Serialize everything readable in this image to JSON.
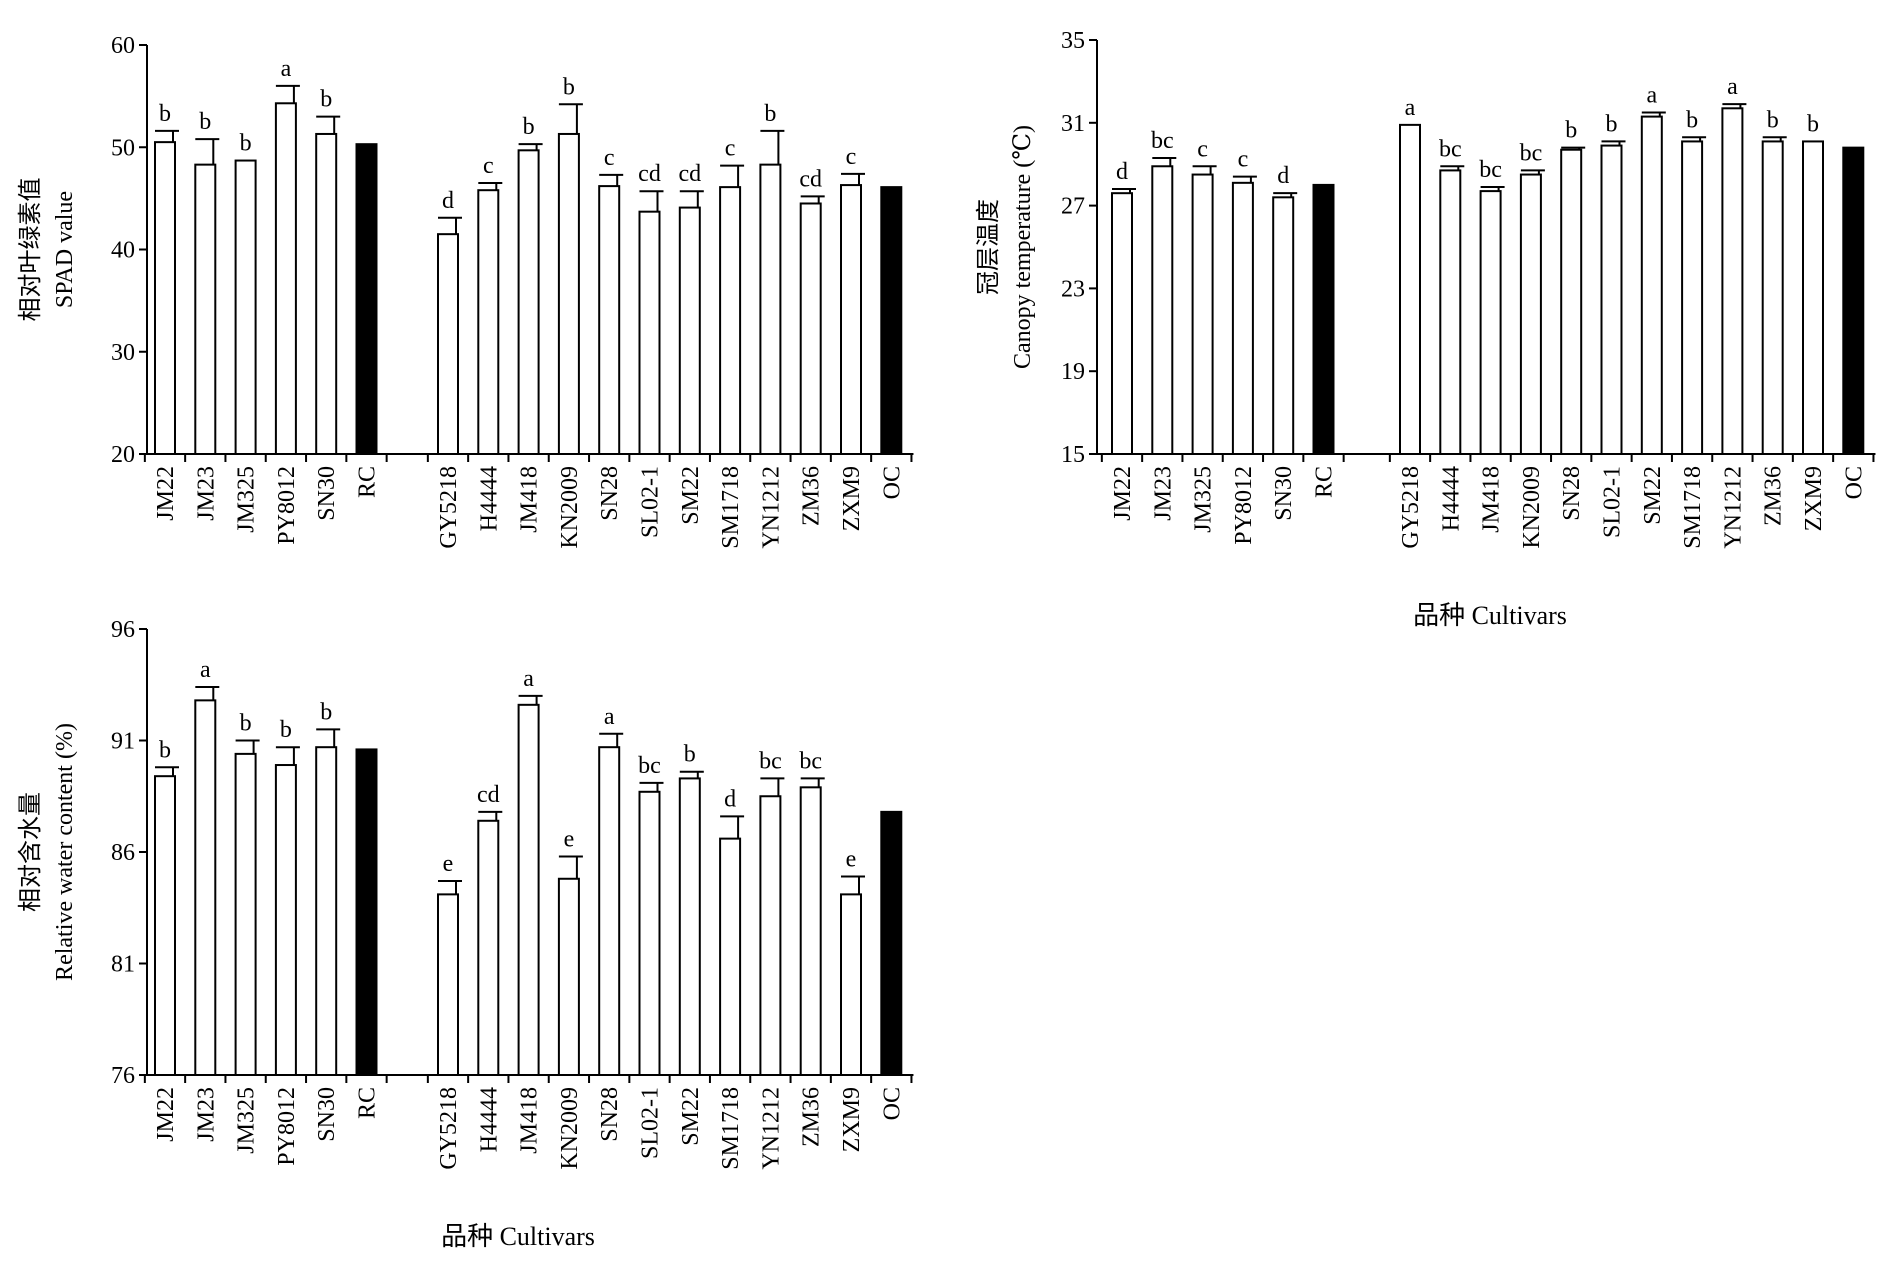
{
  "xlabel_text": "品种 Cultivars",
  "chart_data": [
    {
      "type": "bar",
      "ylabel_cn": "相对叶绿素值",
      "ylabel_en": "SPAD value",
      "ylim": [
        20,
        60
      ],
      "yticks": [
        20,
        30,
        40,
        50,
        60
      ],
      "xlabel": "",
      "groups": [
        {
          "categories": [
            "JM22",
            "JM23",
            "JM325",
            "PY8012",
            "SN30",
            "RC"
          ],
          "values": [
            50.5,
            48.3,
            48.7,
            54.3,
            51.3,
            50.3
          ],
          "errors": [
            1.1,
            2.5,
            0.0,
            1.7,
            1.7,
            0
          ],
          "letters": [
            "b",
            "b",
            "b",
            "a",
            "b",
            ""
          ],
          "reference_index": 5
        },
        {
          "categories": [
            "GY5218",
            "H4444",
            "JM418",
            "KN2009",
            "SN28",
            "SL02-1",
            "SM22",
            "SM1718",
            "YN1212",
            "ZM36",
            "ZXM9",
            "OC"
          ],
          "values": [
            41.5,
            45.8,
            49.7,
            51.3,
            46.2,
            43.7,
            44.1,
            46.1,
            48.3,
            44.5,
            46.3,
            46.1
          ],
          "errors": [
            1.6,
            0.7,
            0.6,
            2.9,
            1.1,
            2.0,
            1.6,
            2.1,
            3.3,
            0.7,
            1.1,
            0
          ],
          "letters": [
            "d",
            "c",
            "b",
            "b",
            "c",
            "cd",
            "cd",
            "c",
            "b",
            "cd",
            "c",
            ""
          ],
          "reference_index": 11
        }
      ]
    },
    {
      "type": "bar",
      "ylabel_cn": "冠层温度",
      "ylabel_en": "Canopy temperature (℃)",
      "ylim": [
        15,
        35
      ],
      "yticks": [
        15,
        19,
        23,
        27,
        31,
        35
      ],
      "xlabel": "品种 Cultivars",
      "groups": [
        {
          "categories": [
            "JM22",
            "JM23",
            "JM325",
            "PY8012",
            "SN30",
            "RC"
          ],
          "values": [
            27.6,
            28.9,
            28.5,
            28.1,
            27.4,
            28.0
          ],
          "errors": [
            0.2,
            0.4,
            0.4,
            0.3,
            0.2,
            0
          ],
          "letters": [
            "d",
            "bc",
            "c",
            "c",
            "d",
            ""
          ],
          "reference_index": 5
        },
        {
          "categories": [
            "GY5218",
            "H4444",
            "JM418",
            "KN2009",
            "SN28",
            "SL02-1",
            "SM22",
            "SM1718",
            "YN1212",
            "ZM36",
            "ZXM9",
            "OC"
          ],
          "values": [
            30.9,
            28.7,
            27.7,
            28.5,
            29.7,
            29.9,
            31.3,
            30.1,
            31.7,
            30.1,
            30.1,
            29.8
          ],
          "errors": [
            0.0,
            0.2,
            0.2,
            0.2,
            0.1,
            0.2,
            0.2,
            0.2,
            0.2,
            0.2,
            0.0,
            0
          ],
          "letters": [
            "a",
            "bc",
            "bc",
            "bc",
            "b",
            "b",
            "a",
            "b",
            "a",
            "b",
            "b",
            ""
          ],
          "reference_index": 11
        }
      ]
    },
    {
      "type": "bar",
      "ylabel_cn": "相对含水量",
      "ylabel_en": "Relative water content (%)",
      "ylim": [
        76,
        96
      ],
      "yticks": [
        76,
        81,
        86,
        91,
        96
      ],
      "xlabel": "品种 Cultivars",
      "groups": [
        {
          "categories": [
            "JM22",
            "JM23",
            "JM325",
            "PY8012",
            "SN30",
            "RC"
          ],
          "values": [
            89.4,
            92.8,
            90.4,
            89.9,
            90.7,
            90.6
          ],
          "errors": [
            0.4,
            0.6,
            0.6,
            0.8,
            0.8,
            0
          ],
          "letters": [
            "b",
            "a",
            "b",
            "b",
            "b",
            ""
          ],
          "reference_index": 5
        },
        {
          "categories": [
            "GY5218",
            "H4444",
            "JM418",
            "KN2009",
            "SN28",
            "SL02-1",
            "SM22",
            "SM1718",
            "YN1212",
            "ZM36",
            "ZXM9",
            "OC"
          ],
          "values": [
            84.1,
            87.4,
            92.6,
            84.8,
            90.7,
            88.7,
            89.3,
            86.6,
            88.5,
            88.9,
            84.1,
            87.8
          ],
          "errors": [
            0.6,
            0.4,
            0.4,
            1.0,
            0.6,
            0.4,
            0.3,
            1.0,
            0.8,
            0.4,
            0.8,
            0
          ],
          "letters": [
            "e",
            "cd",
            "a",
            "e",
            "a",
            "bc",
            "b",
            "d",
            "bc",
            "bc",
            "e",
            ""
          ],
          "reference_index": 11
        }
      ]
    }
  ]
}
